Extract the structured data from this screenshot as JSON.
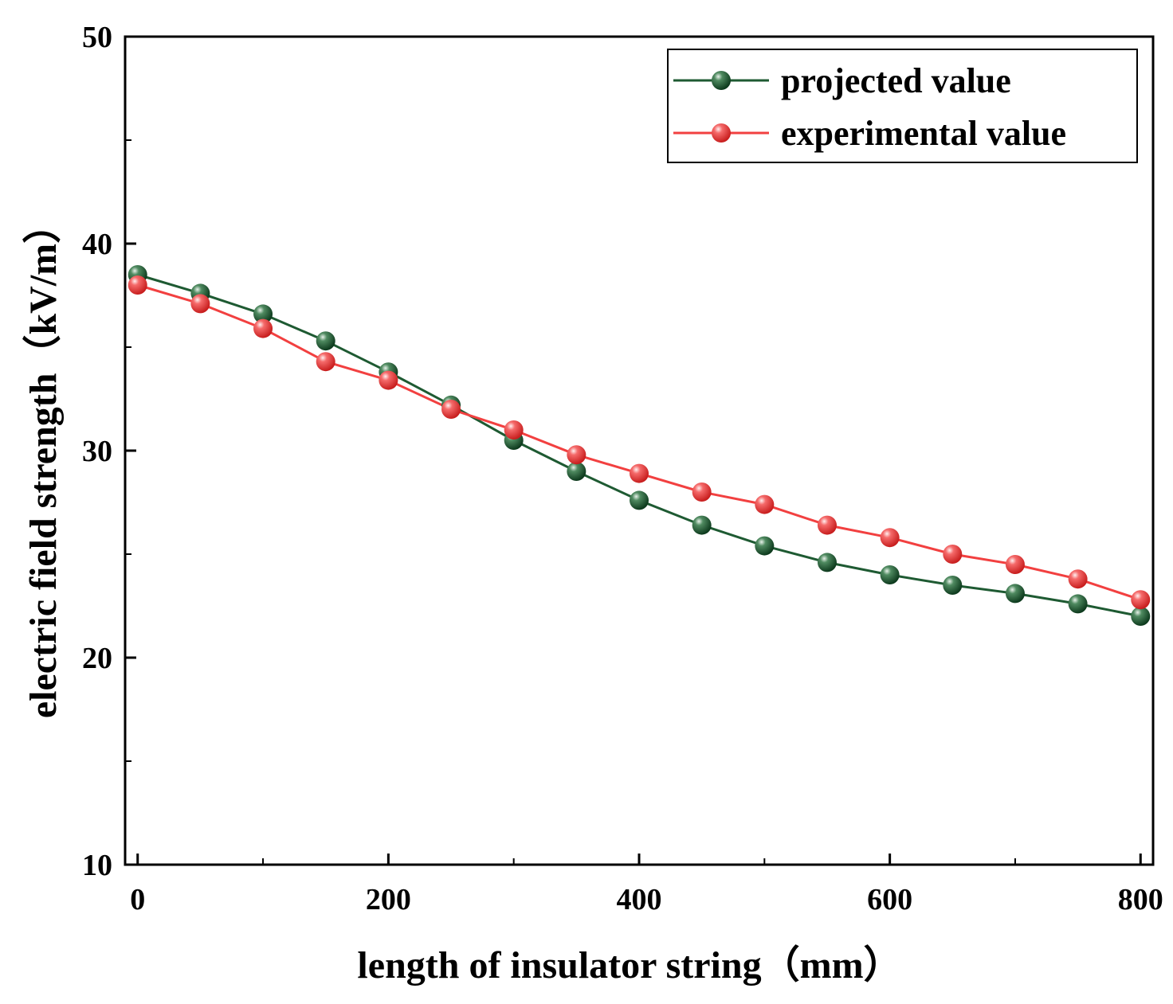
{
  "chart_data": {
    "type": "line",
    "title": "",
    "xlabel": "length of insulator string（mm）",
    "ylabel": "electric field strength（kV/m）",
    "xlim": [
      -10,
      810
    ],
    "ylim": [
      10,
      50
    ],
    "xticks": [
      0,
      200,
      400,
      600,
      800
    ],
    "xtick_labels": [
      "0",
      "200",
      "400",
      "600",
      "800"
    ],
    "xminor": [
      100,
      300,
      500,
      700
    ],
    "yticks": [
      10,
      20,
      30,
      40,
      50
    ],
    "ytick_labels": [
      "10",
      "20",
      "30",
      "40",
      "50"
    ],
    "yminor": [
      15,
      25,
      35,
      45
    ],
    "grid": false,
    "legend_position": "top-right",
    "x": [
      0,
      50,
      100,
      150,
      200,
      250,
      300,
      350,
      400,
      450,
      500,
      550,
      600,
      650,
      700,
      750,
      800
    ],
    "series": [
      {
        "name": "projected value",
        "color": "#1e5a32",
        "marker_color": "#1e5a32",
        "values": [
          38.5,
          37.6,
          36.6,
          35.3,
          33.8,
          32.2,
          30.5,
          29.0,
          27.6,
          26.4,
          25.4,
          24.6,
          24.0,
          23.5,
          23.1,
          22.6,
          22.0
        ]
      },
      {
        "name": "experimental value",
        "color": "#f24040",
        "marker_color": "#ee3a3a",
        "values": [
          38.0,
          37.1,
          35.9,
          34.3,
          33.4,
          32.0,
          31.0,
          29.8,
          28.9,
          28.0,
          27.4,
          26.4,
          25.8,
          25.0,
          24.5,
          23.8,
          22.8
        ]
      }
    ]
  }
}
